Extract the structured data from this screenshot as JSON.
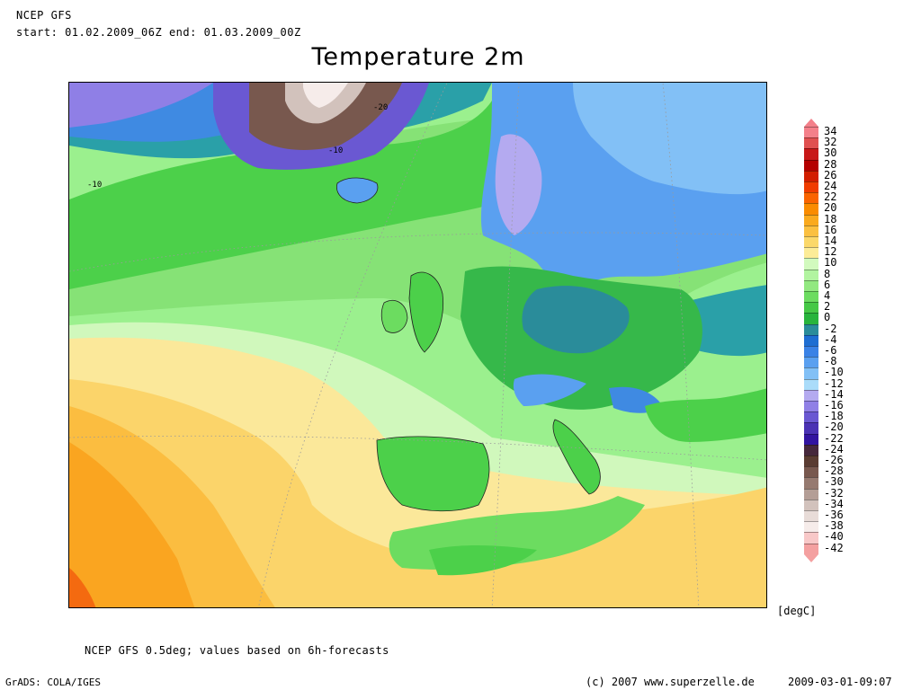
{
  "header": {
    "source": "NCEP GFS",
    "period": "start: 01.02.2009_06Z end: 01.03.2009_00Z"
  },
  "title": "Temperature 2m",
  "map": {
    "contour_labels": [
      "-20",
      "-10",
      "-10"
    ]
  },
  "legend": {
    "unit": "[degC]",
    "levels": [
      {
        "label": "34",
        "color": "#f4808a"
      },
      {
        "label": "32",
        "color": "#e05050"
      },
      {
        "label": "30",
        "color": "#c81818"
      },
      {
        "label": "28",
        "color": "#b40000"
      },
      {
        "label": "26",
        "color": "#d21e00"
      },
      {
        "label": "24",
        "color": "#f03c00"
      },
      {
        "label": "22",
        "color": "#fa6400"
      },
      {
        "label": "20",
        "color": "#fa8c00"
      },
      {
        "label": "18",
        "color": "#faaa1e"
      },
      {
        "label": "16",
        "color": "#fbc040"
      },
      {
        "label": "14",
        "color": "#fbd86a"
      },
      {
        "label": "12",
        "color": "#fcec98"
      },
      {
        "label": "10",
        "color": "#d2fabe"
      },
      {
        "label": "8",
        "color": "#b2f4a0"
      },
      {
        "label": "6",
        "color": "#92e880"
      },
      {
        "label": "4",
        "color": "#6cdc60"
      },
      {
        "label": "2",
        "color": "#46c846"
      },
      {
        "label": "0",
        "color": "#28b43c"
      },
      {
        "label": "-2",
        "color": "#2a8c9a"
      },
      {
        "label": "-4",
        "color": "#1e6ed2"
      },
      {
        "label": "-6",
        "color": "#3a82e6"
      },
      {
        "label": "-8",
        "color": "#5aa0f0"
      },
      {
        "label": "-10",
        "color": "#82c0f6"
      },
      {
        "label": "-12",
        "color": "#aadcfa"
      },
      {
        "label": "-14",
        "color": "#b4aaf0"
      },
      {
        "label": "-16",
        "color": "#9080e6"
      },
      {
        "label": "-18",
        "color": "#6a58d2"
      },
      {
        "label": "-20",
        "color": "#4a32b4"
      },
      {
        "label": "-22",
        "color": "#3214a0"
      },
      {
        "label": "-24",
        "color": "#46283c"
      },
      {
        "label": "-26",
        "color": "#5a3c32"
      },
      {
        "label": "-28",
        "color": "#78584e"
      },
      {
        "label": "-30",
        "color": "#967a70"
      },
      {
        "label": "-32",
        "color": "#b49e96"
      },
      {
        "label": "-34",
        "color": "#d2c2bc"
      },
      {
        "label": "-36",
        "color": "#e8dcd8"
      },
      {
        "label": "-38",
        "color": "#f6ecea"
      },
      {
        "label": "-40",
        "color": "#f8c8c8"
      },
      {
        "label": "-42",
        "color": "#f4a0a0"
      }
    ]
  },
  "note": "NCEP GFS 0.5deg; values based on 6h-forecasts",
  "footer": {
    "software": "GrADS: COLA/IGES",
    "copyright": "(c) 2007 www.superzelle.de",
    "timestamp": "2009-03-01-09:07"
  }
}
